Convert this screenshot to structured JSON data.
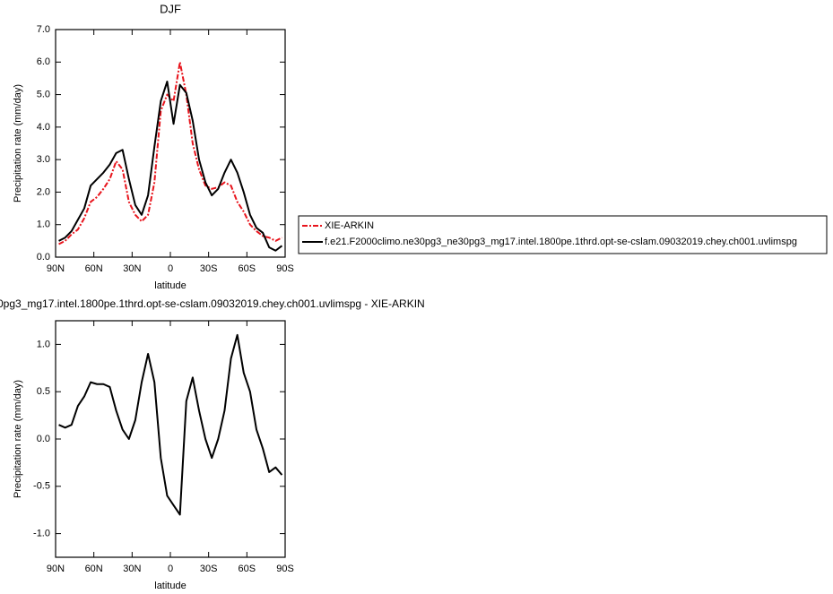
{
  "chart_data": [
    {
      "type": "line",
      "title": "DJF",
      "x_label": "latitude",
      "y_label": "Precipitation rate (mm/day)",
      "x": [
        87.5,
        82.5,
        77.5,
        72.5,
        67.5,
        62.5,
        57.5,
        52.5,
        47.5,
        42.5,
        37.5,
        32.5,
        27.5,
        22.5,
        17.5,
        12.5,
        7.5,
        2.5,
        -2.5,
        -7.5,
        -12.5,
        -17.5,
        -22.5,
        -27.5,
        -32.5,
        -37.5,
        -42.5,
        -47.5,
        -52.5,
        -57.5,
        -62.5,
        -67.5,
        -72.5,
        -77.5,
        -82.5,
        -87.5
      ],
      "xlim": [
        90,
        -90
      ],
      "xticks": [
        {
          "value": 90,
          "label": "90N"
        },
        {
          "value": 60,
          "label": "60N"
        },
        {
          "value": 30,
          "label": "30N"
        },
        0,
        {
          "value": -30,
          "label": "30S"
        },
        {
          "value": -60,
          "label": "60S"
        },
        {
          "value": -90,
          "label": "90S"
        }
      ],
      "ylim": [
        0,
        7
      ],
      "yticks": [
        {
          "value": 0,
          "label": "0.0"
        },
        {
          "value": 1,
          "label": "1.0"
        },
        {
          "value": 2,
          "label": "2.0"
        },
        {
          "value": 3,
          "label": "3.0"
        },
        {
          "value": 4,
          "label": "4.0"
        },
        {
          "value": 5,
          "label": "5.0"
        },
        {
          "value": 6,
          "label": "6.0"
        },
        {
          "value": 7,
          "label": "7.0"
        }
      ],
      "legend": "outside-right",
      "series": [
        {
          "name": "XIE-ARKIN",
          "color": "#e8141c",
          "line_style": "dashed",
          "values": [
            0.4,
            0.5,
            0.7,
            0.85,
            1.2,
            1.7,
            1.85,
            2.1,
            2.4,
            2.95,
            2.7,
            1.7,
            1.3,
            1.1,
            1.3,
            2.3,
            4.5,
            5.0,
            4.8,
            6.0,
            5.0,
            3.5,
            2.7,
            2.2,
            2.1,
            2.15,
            2.3,
            2.2,
            1.7,
            1.4,
            1.0,
            0.8,
            0.65,
            0.6,
            0.5,
            0.6
          ]
        },
        {
          "name": "f.e21.F2000climo.ne30pg3_ne30pg3_mg17.intel.1800pe.1thrd.opt-se-cslam.09032019.chey.ch001.uvlimspg",
          "color": "#000000",
          "line_style": "solid",
          "values": [
            0.5,
            0.6,
            0.8,
            1.15,
            1.5,
            2.2,
            2.4,
            2.6,
            2.85,
            3.2,
            3.3,
            2.4,
            1.6,
            1.3,
            1.9,
            3.4,
            4.8,
            5.4,
            4.1,
            5.3,
            5.05,
            4.2,
            3.0,
            2.3,
            1.9,
            2.1,
            2.6,
            3.0,
            2.6,
            2.0,
            1.3,
            0.9,
            0.75,
            0.3,
            0.2,
            0.35
          ]
        }
      ]
    },
    {
      "type": "line",
      "title": "0pg3_mg17.intel.1800pe.1thrd.opt-se-cslam.09032019.chey.ch001.uvlimspg - XIE-ARKIN",
      "x_label": "latitude",
      "y_label": "Precipitation rate (mm/day)",
      "x": [
        87.5,
        82.5,
        77.5,
        72.5,
        67.5,
        62.5,
        57.5,
        52.5,
        47.5,
        42.5,
        37.5,
        32.5,
        27.5,
        22.5,
        17.5,
        12.5,
        7.5,
        2.5,
        -2.5,
        -7.5,
        -12.5,
        -17.5,
        -22.5,
        -27.5,
        -32.5,
        -37.5,
        -42.5,
        -47.5,
        -52.5,
        -57.5,
        -62.5,
        -67.5,
        -72.5,
        -77.5,
        -82.5,
        -87.5
      ],
      "xlim": [
        90,
        -90
      ],
      "xticks": [
        {
          "value": 90,
          "label": "90N"
        },
        {
          "value": 60,
          "label": "60N"
        },
        {
          "value": 30,
          "label": "30N"
        },
        0,
        {
          "value": -30,
          "label": "30S"
        },
        {
          "value": -60,
          "label": "60S"
        },
        {
          "value": -90,
          "label": "90S"
        }
      ],
      "ylim": [
        -1.25,
        1.25
      ],
      "yticks": [
        {
          "value": -1,
          "label": "-1.0"
        },
        {
          "value": -0.5,
          "label": "-0.5"
        },
        {
          "value": 0,
          "label": "0.0"
        },
        0.5,
        {
          "value": 1,
          "label": "1.0"
        }
      ],
      "series": [
        {
          "color": "#000000",
          "line_style": "solid",
          "values": [
            0.15,
            0.12,
            0.15,
            0.35,
            0.45,
            0.6,
            0.58,
            0.58,
            0.55,
            0.3,
            0.1,
            0.0,
            0.2,
            0.6,
            0.9,
            0.6,
            -0.2,
            -0.6,
            -0.7,
            -0.8,
            0.4,
            0.65,
            0.3,
            0.0,
            -0.2,
            0.0,
            0.3,
            0.85,
            1.1,
            0.7,
            0.5,
            0.1,
            -0.1,
            -0.35,
            -0.3,
            -0.38
          ]
        }
      ]
    }
  ]
}
